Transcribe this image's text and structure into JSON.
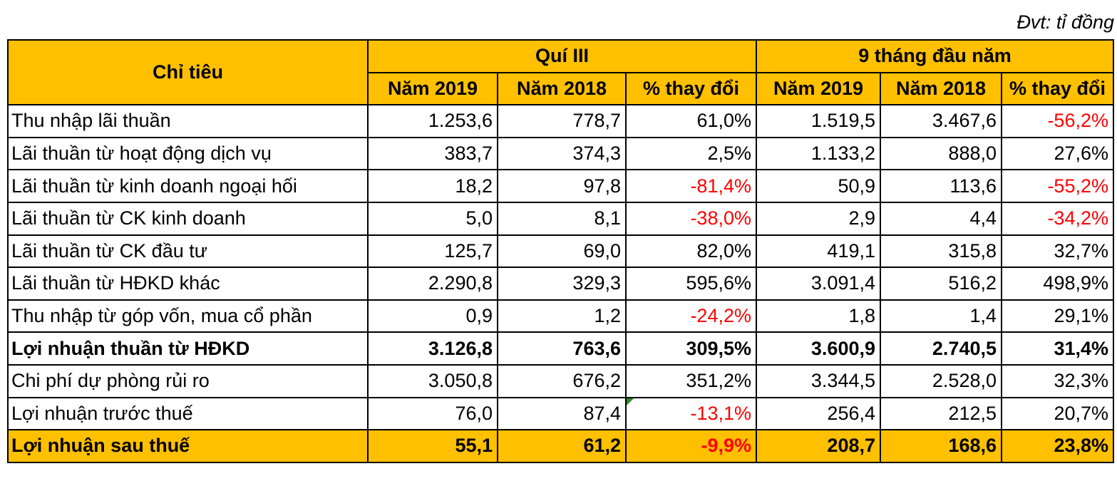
{
  "unit_note": "Đvt: tỉ đồng",
  "chart_data": {
    "type": "table",
    "header": {
      "indicator": "Chỉ tiêu",
      "group_q3": "Quí III",
      "group_9m": "9 tháng đầu năm",
      "subheaders": [
        "Năm 2019",
        "Năm 2018",
        "% thay đổi",
        "Năm 2019",
        "Năm 2018",
        "% thay đổi"
      ]
    },
    "rows": [
      {
        "label": "Thu nhập lãi thuần",
        "bold": false,
        "highlight": false,
        "cells": [
          "1.253,6",
          "778,7",
          "61,0%",
          "1.519,5",
          "3.467,6",
          "-56,2%"
        ]
      },
      {
        "label": "Lãi thuần từ hoạt động dịch vụ",
        "bold": false,
        "highlight": false,
        "cells": [
          "383,7",
          "374,3",
          "2,5%",
          "1.133,2",
          "888,0",
          "27,6%"
        ]
      },
      {
        "label": "Lãi thuần từ kinh doanh ngoại hối",
        "bold": false,
        "highlight": false,
        "cells": [
          "18,2",
          "97,8",
          "-81,4%",
          "50,9",
          "113,6",
          "-55,2%"
        ]
      },
      {
        "label": "Lãi thuần từ CK kinh doanh",
        "bold": false,
        "highlight": false,
        "cells": [
          "5,0",
          "8,1",
          "-38,0%",
          "2,9",
          "4,4",
          "-34,2%"
        ]
      },
      {
        "label": "Lãi thuần từ CK đầu tư",
        "bold": false,
        "highlight": false,
        "cells": [
          "125,7",
          "69,0",
          "82,0%",
          "419,1",
          "315,8",
          "32,7%"
        ]
      },
      {
        "label": "Lãi thuần từ HĐKD khác",
        "bold": false,
        "highlight": false,
        "cells": [
          "2.290,8",
          "329,3",
          "595,6%",
          "3.091,4",
          "516,2",
          "498,9%"
        ]
      },
      {
        "label": "Thu nhập từ góp vốn, mua cổ phần",
        "bold": false,
        "highlight": false,
        "cells": [
          "0,9",
          "1,2",
          "-24,2%",
          "1,8",
          "1,4",
          "29,1%"
        ]
      },
      {
        "label": "Lợi nhuận thuần từ HĐKD",
        "bold": true,
        "highlight": false,
        "cells": [
          "3.126,8",
          "763,6",
          "309,5%",
          "3.600,9",
          "2.740,5",
          "31,4%"
        ]
      },
      {
        "label": "Chi phí dự phòng rủi ro",
        "bold": false,
        "highlight": false,
        "cells": [
          "3.050,8",
          "676,2",
          "351,2%",
          "3.344,5",
          "2.528,0",
          "32,3%"
        ]
      },
      {
        "label": "Lợi nhuận trước thuế",
        "bold": false,
        "highlight": false,
        "cells": [
          "76,0",
          "87,4",
          "-13,1%",
          "256,4",
          "212,5",
          "20,7%"
        ]
      },
      {
        "label": "Lợi nhuận sau thuế",
        "bold": true,
        "highlight": true,
        "cells": [
          "55,1",
          "61,2",
          "-9,9%",
          "208,7",
          "168,6",
          "23,8%"
        ]
      }
    ],
    "colors": {
      "header_bg": "#FFC000",
      "negative_text": "#FF0000",
      "highlight_row_bg": "#FFC000"
    }
  }
}
